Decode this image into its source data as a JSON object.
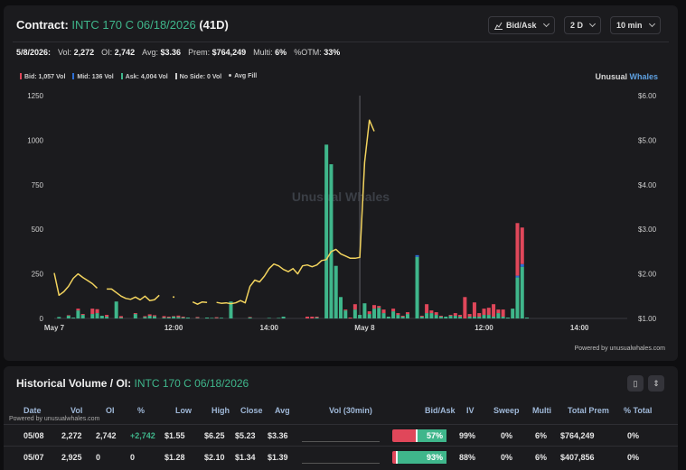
{
  "header": {
    "contract_label": "Contract:",
    "contract": "INTC 170 C 06/18/2026",
    "dte": "(41D)",
    "btn_mode": "Bid/Ask",
    "btn_range": "2 D",
    "btn_interval": "10 min"
  },
  "stats": {
    "date": "5/8/2026:",
    "vol_label": "Vol:",
    "vol": "2,272",
    "oi_label": "OI:",
    "oi": "2,742",
    "avg_label": "Avg:",
    "avg": "$3.36",
    "prem_label": "Prem:",
    "prem": "$764,249",
    "multi_label": "Multi:",
    "multi": "6%",
    "otm_label": "%OTM:",
    "otm": "33%"
  },
  "legend": {
    "bid": "Bid: 1,057 Vol",
    "mid": "Mid: 136 Vol",
    "ask": "Ask: 4,004 Vol",
    "noside": "No Side: 0 Vol",
    "avgfill": "Avg Fill"
  },
  "brand": {
    "part1": "Unusual",
    "part2": "Whales"
  },
  "powered": "Powered by unusualwhales.com",
  "colors": {
    "bid": "#e0475a",
    "mid": "#2d6fd6",
    "ask": "#3fb68b",
    "avg_line": "#f2d35e",
    "noside": "#cccccc"
  },
  "chart_data": {
    "type": "bar",
    "watermark": "Unusual Whales",
    "y_left_ticks": [
      "1250",
      "1000",
      "750",
      "500",
      "250",
      "0"
    ],
    "y_left_range": [
      0,
      1250
    ],
    "y_right_ticks": [
      "$6.00",
      "$5.00",
      "$4.00",
      "$3.00",
      "$2.00",
      "$1.00"
    ],
    "y_right_range": [
      1.0,
      6.0
    ],
    "x_ticks": [
      {
        "label": "May 7",
        "t": 0
      },
      {
        "label": "12:00",
        "t": 25
      },
      {
        "label": "14:00",
        "t": 45
      },
      {
        "label": "May 8",
        "t": 65
      },
      {
        "label": "12:00",
        "t": 90
      },
      {
        "label": "14:00",
        "t": 110
      }
    ],
    "session_divider_t": 64,
    "bars": [
      {
        "t": 1,
        "ask": 8,
        "bid": 0,
        "mid": 0
      },
      {
        "t": 3,
        "ask": 15,
        "bid": 3,
        "mid": 0
      },
      {
        "t": 4,
        "ask": 5,
        "bid": 0,
        "mid": 0
      },
      {
        "t": 5,
        "ask": 45,
        "bid": 10,
        "mid": 0
      },
      {
        "t": 6,
        "ask": 20,
        "bid": 5,
        "mid": 0
      },
      {
        "t": 8,
        "ask": 25,
        "bid": 30,
        "mid": 0
      },
      {
        "t": 9,
        "ask": 30,
        "bid": 22,
        "mid": 0
      },
      {
        "t": 10,
        "ask": 15,
        "bid": 0,
        "mid": 0
      },
      {
        "t": 11,
        "ask": 10,
        "bid": 10,
        "mid": 0
      },
      {
        "t": 13,
        "ask": 95,
        "bid": 0,
        "mid": 0
      },
      {
        "t": 14,
        "ask": 5,
        "bid": 8,
        "mid": 0
      },
      {
        "t": 17,
        "ask": 25,
        "bid": 5,
        "mid": 0
      },
      {
        "t": 19,
        "ask": 8,
        "bid": 5,
        "mid": 0
      },
      {
        "t": 20,
        "ask": 15,
        "bid": 8,
        "mid": 0
      },
      {
        "t": 21,
        "ask": 12,
        "bid": 6,
        "mid": 0
      },
      {
        "t": 23,
        "ask": 5,
        "bid": 8,
        "mid": 0
      },
      {
        "t": 24,
        "ask": 5,
        "bid": 5,
        "mid": 0
      },
      {
        "t": 25,
        "ask": 10,
        "bid": 3,
        "mid": 0
      },
      {
        "t": 26,
        "ask": 8,
        "bid": 8,
        "mid": 0
      },
      {
        "t": 27,
        "ask": 5,
        "bid": 5,
        "mid": 0
      },
      {
        "t": 28,
        "ask": 5,
        "bid": 0,
        "mid": 0
      },
      {
        "t": 30,
        "ask": 3,
        "bid": 5,
        "mid": 0
      },
      {
        "t": 32,
        "ask": 5,
        "bid": 0,
        "mid": 0
      },
      {
        "t": 33,
        "ask": 3,
        "bid": 0,
        "mid": 0
      },
      {
        "t": 34,
        "ask": 2,
        "bid": 5,
        "mid": 0
      },
      {
        "t": 35,
        "ask": 4,
        "bid": 0,
        "mid": 0
      },
      {
        "t": 37,
        "ask": 95,
        "bid": 0,
        "mid": 0
      },
      {
        "t": 41,
        "ask": 5,
        "bid": 3,
        "mid": 0
      },
      {
        "t": 45,
        "ask": 3,
        "bid": 0,
        "mid": 0
      },
      {
        "t": 47,
        "ask": 3,
        "bid": 0,
        "mid": 0
      },
      {
        "t": 48,
        "ask": 10,
        "bid": 0,
        "mid": 0
      },
      {
        "t": 53,
        "ask": 0,
        "bid": 10,
        "mid": 0
      },
      {
        "t": 54,
        "ask": 0,
        "bid": 10,
        "mid": 0
      },
      {
        "t": 55,
        "ask": 5,
        "bid": 5,
        "mid": 0
      },
      {
        "t": 57,
        "ask": 975,
        "bid": 0,
        "mid": 0
      },
      {
        "t": 58,
        "ask": 865,
        "bid": 0,
        "mid": 0
      },
      {
        "t": 59,
        "ask": 295,
        "bid": 0,
        "mid": 0
      },
      {
        "t": 60,
        "ask": 120,
        "bid": 0,
        "mid": 0
      },
      {
        "t": 61,
        "ask": 45,
        "bid": 5,
        "mid": 0
      },
      {
        "t": 62,
        "ask": 0,
        "bid": 5,
        "mid": 0
      },
      {
        "t": 63,
        "ask": 50,
        "bid": 30,
        "mid": 0
      },
      {
        "t": 64,
        "ask": 20,
        "bid": 0,
        "mid": 0
      },
      {
        "t": 65,
        "ask": 85,
        "bid": 0,
        "mid": 0
      },
      {
        "t": 66,
        "ask": 25,
        "bid": 15,
        "mid": 0
      },
      {
        "t": 67,
        "ask": 55,
        "bid": 20,
        "mid": 0
      },
      {
        "t": 68,
        "ask": 60,
        "bid": 10,
        "mid": 0
      },
      {
        "t": 69,
        "ask": 30,
        "bid": 20,
        "mid": 0
      },
      {
        "t": 70,
        "ask": 10,
        "bid": 0,
        "mid": 0
      },
      {
        "t": 71,
        "ask": 40,
        "bid": 15,
        "mid": 0
      },
      {
        "t": 72,
        "ask": 20,
        "bid": 10,
        "mid": 0
      },
      {
        "t": 73,
        "ask": 10,
        "bid": 5,
        "mid": 0
      },
      {
        "t": 74,
        "ask": 25,
        "bid": 10,
        "mid": 0
      },
      {
        "t": 76,
        "ask": 345,
        "bid": 0,
        "mid": 10
      },
      {
        "t": 77,
        "ask": 10,
        "bid": 5,
        "mid": 0
      },
      {
        "t": 78,
        "ask": 30,
        "bid": 50,
        "mid": 0
      },
      {
        "t": 79,
        "ask": 30,
        "bid": 15,
        "mid": 0
      },
      {
        "t": 80,
        "ask": 20,
        "bid": 15,
        "mid": 0
      },
      {
        "t": 81,
        "ask": 10,
        "bid": 5,
        "mid": 0
      },
      {
        "t": 82,
        "ask": 10,
        "bid": 0,
        "mid": 0
      },
      {
        "t": 83,
        "ask": 15,
        "bid": 5,
        "mid": 0
      },
      {
        "t": 84,
        "ask": 15,
        "bid": 15,
        "mid": 0
      },
      {
        "t": 85,
        "ask": 10,
        "bid": 10,
        "mid": 0
      },
      {
        "t": 86,
        "ask": 0,
        "bid": 120,
        "mid": 0
      },
      {
        "t": 87,
        "ask": 10,
        "bid": 15,
        "mid": 0
      },
      {
        "t": 88,
        "ask": 10,
        "bid": 80,
        "mid": 0
      },
      {
        "t": 89,
        "ask": 10,
        "bid": 20,
        "mid": 0
      },
      {
        "t": 90,
        "ask": 20,
        "bid": 35,
        "mid": 0
      },
      {
        "t": 91,
        "ask": 20,
        "bid": 40,
        "mid": 0
      },
      {
        "t": 92,
        "ask": 10,
        "bid": 70,
        "mid": 0
      },
      {
        "t": 93,
        "ask": 30,
        "bid": 20,
        "mid": 0
      },
      {
        "t": 94,
        "ask": 10,
        "bid": 40,
        "mid": 0
      },
      {
        "t": 95,
        "ask": 5,
        "bid": 0,
        "mid": 0
      },
      {
        "t": 96,
        "ask": 55,
        "bid": 0,
        "mid": 0
      },
      {
        "t": 97,
        "ask": 230,
        "bid": 295,
        "mid": 10
      },
      {
        "t": 98,
        "ask": 290,
        "bid": 205,
        "mid": 15
      },
      {
        "t": 99,
        "ask": 5,
        "bid": 0,
        "mid": 0
      }
    ],
    "avg_fill_segments": [
      [
        [
          0,
          2.02
        ],
        [
          1,
          1.52
        ],
        [
          2,
          1.6
        ],
        [
          3,
          1.72
        ],
        [
          4,
          1.9
        ],
        [
          5,
          2.0
        ],
        [
          6,
          1.92
        ],
        [
          7,
          1.85
        ],
        [
          8,
          1.78
        ],
        [
          9,
          1.68
        ]
      ],
      [
        [
          11,
          1.66
        ],
        [
          12,
          1.66
        ],
        [
          13,
          1.58
        ],
        [
          14,
          1.5
        ],
        [
          15,
          1.45
        ],
        [
          16,
          1.43
        ],
        [
          17,
          1.48
        ],
        [
          18,
          1.42
        ],
        [
          19,
          1.5
        ],
        [
          20,
          1.4
        ],
        [
          21,
          1.42
        ],
        [
          22,
          1.52
        ]
      ],
      [
        [
          25,
          1.48
        ]
      ],
      [
        [
          29,
          1.37
        ],
        [
          30,
          1.32
        ],
        [
          31,
          1.37
        ],
        [
          32,
          1.36
        ]
      ],
      [
        [
          34,
          1.36
        ],
        [
          35,
          1.34
        ],
        [
          36,
          1.35
        ],
        [
          37,
          1.33
        ],
        [
          38,
          1.35
        ],
        [
          39,
          1.4
        ],
        [
          40,
          1.35
        ],
        [
          41,
          1.72
        ],
        [
          42,
          1.86
        ],
        [
          43,
          1.82
        ],
        [
          44,
          1.95
        ],
        [
          45,
          2.12
        ],
        [
          46,
          2.22
        ],
        [
          47,
          2.18
        ],
        [
          48,
          2.1
        ],
        [
          49,
          2.05
        ],
        [
          50,
          2.12
        ],
        [
          51,
          2.0
        ],
        [
          52,
          2.18
        ],
        [
          53,
          2.2
        ],
        [
          54,
          2.16
        ],
        [
          55,
          2.2
        ],
        [
          56,
          2.3
        ],
        [
          57,
          2.32
        ],
        [
          58,
          2.5
        ],
        [
          59,
          2.55
        ],
        [
          60,
          2.45
        ],
        [
          61,
          2.4
        ],
        [
          62,
          2.35
        ],
        [
          63,
          2.35
        ],
        [
          64,
          2.37
        ],
        [
          65,
          4.5
        ],
        [
          66,
          5.45
        ],
        [
          67,
          5.2
        ]
      ]
    ]
  },
  "table": {
    "title": "Historical Volume / OI:",
    "title_contract": "INTC 170 C 06/18/2026",
    "powered": "Powered by unusualwhales.com",
    "headers": [
      "Date",
      "Vol",
      "OI",
      "%",
      "Low",
      "High",
      "Close",
      "Avg",
      "Vol (30min)",
      "Bid/Ask",
      "IV",
      "Sweep",
      "Multi",
      "Total Prem",
      "% Total"
    ],
    "rows": [
      {
        "date": "05/08",
        "vol": "2,272",
        "oi": "2,742",
        "pct": "+2,742",
        "low": "$1.55",
        "high": "$6.25",
        "close": "$5.23",
        "avg": "$3.36",
        "ask_pct": 0.57,
        "ba_label": "57%",
        "iv": "99%",
        "sweep": "0%",
        "multi": "6%",
        "total_prem": "$764,249",
        "pct_total": "0%"
      },
      {
        "date": "05/07",
        "vol": "2,925",
        "oi": "0",
        "pct": "0",
        "low": "$1.28",
        "high": "$2.10",
        "close": "$1.34",
        "avg": "$1.39",
        "ask_pct": 0.93,
        "ba_label": "93%",
        "iv": "88%",
        "sweep": "0%",
        "multi": "6%",
        "total_prem": "$407,856",
        "pct_total": "0%"
      }
    ]
  }
}
